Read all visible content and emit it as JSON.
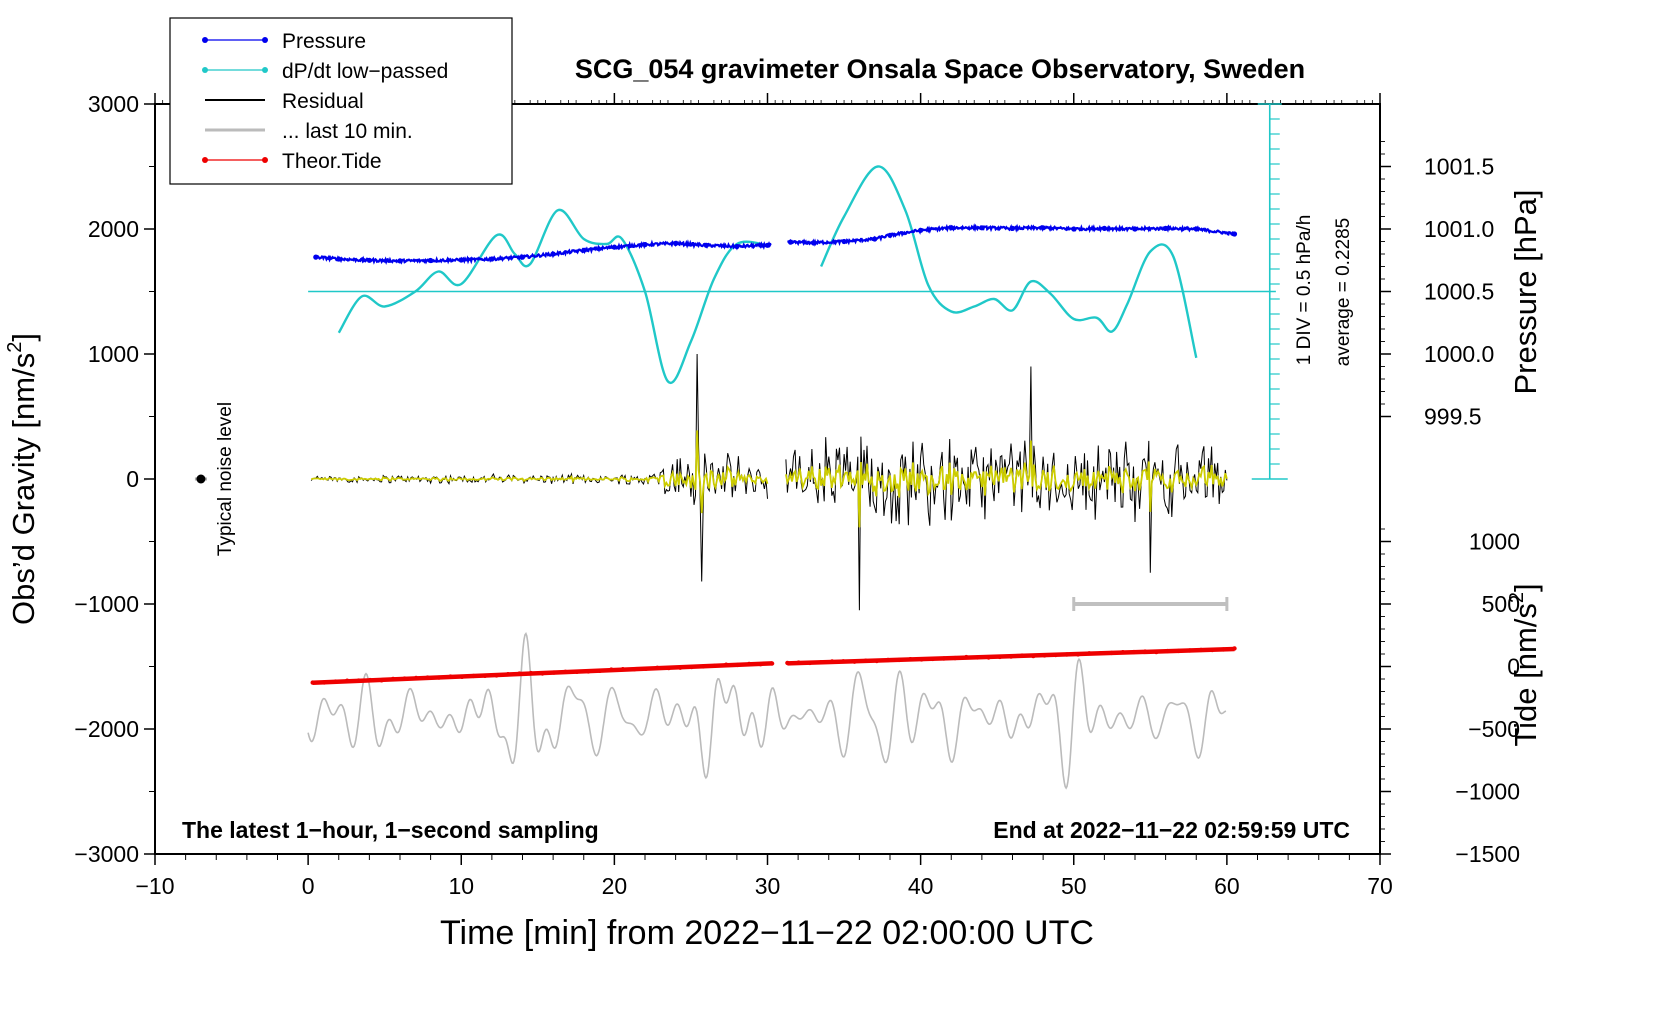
{
  "chart_data": {
    "type": "line",
    "title": "SCG_054 gravimeter Onsala Space Observatory, Sweden",
    "xlabel": "Time [min] from 2022−11−22 02:00:00 UTC",
    "ylabel_left": "Obs’d Gravity [nm/s²]",
    "ylabel_left_main": "Obs’d Gravity [nm/s",
    "ylabel_left_sup": "2",
    "ylabel_left_close": "]",
    "ylabel_pressure": "Pressure [hPa]",
    "ylabel_tide_main": "Tide [nm/s",
    "ylabel_tide_sup": "2",
    "ylabel_tide_close": "]",
    "xlim": [
      -10,
      70
    ],
    "ylim": [
      -3000,
      3000
    ],
    "xticks": [
      -10,
      0,
      10,
      20,
      30,
      40,
      50,
      60,
      70
    ],
    "xtick_labels": [
      "−10",
      "0",
      "10",
      "20",
      "30",
      "40",
      "50",
      "60",
      "70"
    ],
    "yticks": [
      3000,
      2000,
      1000,
      0,
      -1000,
      -2000,
      -3000
    ],
    "ytick_labels": [
      "3000",
      "2000",
      "1000",
      "0",
      "−1000",
      "−2000",
      "−3000"
    ],
    "pressure_axis": {
      "ticks": [
        1001.5,
        1001.0,
        1000.5,
        1000.0,
        999.5
      ],
      "labels": [
        "1001.5",
        "1001.0",
        "1000.5",
        "1000.0",
        "999.5"
      ],
      "gravity_at_1000hPa": 1000,
      "gravity_per_hPa": 1000
    },
    "tide_axis": {
      "ticks": [
        1000,
        500,
        0,
        -500,
        -1000,
        -1500
      ],
      "labels": [
        "1000",
        "500",
        "0",
        "−500",
        "−1000",
        "−1500"
      ],
      "gravity_at_0": -1500,
      "gravity_per_unit": 1
    },
    "legend": {
      "position": "top-left",
      "entries": [
        {
          "label": "Pressure",
          "color": "#0000ee",
          "marker": true
        },
        {
          "label": "dP/dt low−passed",
          "color": "#20c8c8",
          "marker": true
        },
        {
          "label": "Residual",
          "color": "#000000",
          "marker": false
        },
        {
          "label": "... last 10 min.",
          "color": "#bbbbbb",
          "marker": false
        },
        {
          "label": "Theor.Tide",
          "color": "#ee0000",
          "marker": true
        }
      ]
    },
    "colors": {
      "pressure": "#0000ee",
      "dpdt": "#20c8c8",
      "residual": "#000000",
      "residual_filtered": "#cccc00",
      "last10": "#bbbbbb",
      "tide": "#ee0000",
      "noise": "#000000"
    },
    "annotations": {
      "bottom_left": "The latest 1−hour, 1−second sampling",
      "bottom_right": "End at 2022−11−22 02:59:59 UTC",
      "noise_label": "Typical noise level",
      "div_label": "1 DIV = 0.5 hPa/h",
      "average_label": "average = 0.2285"
    },
    "dpdt_scale": {
      "x": 62.8,
      "baseline_gravity": 1500,
      "divisions": 15,
      "gravity_per_div": 100
    },
    "dpdt_baseline": {
      "x": [
        0,
        63.2
      ],
      "y": [
        1500,
        1500
      ]
    },
    "noise_level": {
      "x": -7,
      "y": 0
    },
    "last10_bar": {
      "x": [
        50,
        60
      ],
      "y": -1000
    },
    "pressure": {
      "x": [
        0.5,
        2,
        4,
        6,
        8,
        10,
        12,
        14,
        16,
        18,
        20,
        22,
        24,
        26,
        28,
        30,
        31.5,
        33,
        35,
        37,
        38,
        40,
        42,
        44,
        46,
        48,
        50,
        52,
        54,
        56,
        58,
        60.5
      ],
      "y": [
        1775,
        1760,
        1750,
        1745,
        1748,
        1752,
        1760,
        1775,
        1800,
        1830,
        1855,
        1875,
        1885,
        1870,
        1860,
        1870,
        1895,
        1890,
        1900,
        1920,
        1950,
        1990,
        2010,
        2010,
        2005,
        2010,
        2000,
        2005,
        2000,
        2005,
        2000,
        1960
      ]
    },
    "dpdt_segment1": {
      "x": [
        2,
        3.5,
        5,
        7,
        8.5,
        10,
        12.3,
        13.5,
        14.5,
        16.3,
        18,
        19.5,
        20.5,
        22,
        23.5,
        25,
        26.5,
        28,
        30
      ],
      "y": [
        1170,
        1460,
        1380,
        1500,
        1660,
        1560,
        1950,
        1800,
        1720,
        2150,
        1920,
        1880,
        1920,
        1500,
        780,
        1100,
        1600,
        1880,
        1870
      ]
    },
    "dpdt_segment2": {
      "x": [
        33.5,
        35,
        37.2,
        39,
        40.5,
        42,
        43.5,
        44.8,
        46,
        47.2,
        48.5,
        50,
        51.5,
        52.5,
        53.5,
        55,
        56.5,
        58
      ],
      "y": [
        1700,
        2100,
        2500,
        2150,
        1550,
        1340,
        1380,
        1440,
        1350,
        1580,
        1480,
        1280,
        1290,
        1180,
        1400,
        1820,
        1780,
        970
      ]
    },
    "tide_segment1": {
      "x": [
        0.3,
        30.3
      ],
      "y": [
        -1630,
        -1475
      ]
    },
    "tide_segment2": {
      "x": [
        31.3,
        60.5
      ],
      "y": [
        -1475,
        -1360
      ]
    },
    "residual_model": {
      "segments": [
        [
          0.2,
          30.1
        ],
        [
          31.2,
          60.1
        ]
      ],
      "step_minutes": 0.1,
      "envelope": {
        "x": [
          0,
          10,
          20,
          22.5,
          23.5,
          25,
          26,
          27,
          29,
          30,
          31,
          35,
          40,
          45,
          50,
          55,
          60
        ],
        "y": [
          30,
          45,
          40,
          90,
          200,
          400,
          520,
          250,
          200,
          220,
          320,
          480,
          420,
          380,
          380,
          360,
          300
        ]
      },
      "spikes": [
        {
          "x": 25.4,
          "y": 1000
        },
        {
          "x": 25.7,
          "y": -820
        },
        {
          "x": 36.0,
          "y": -1050
        },
        {
          "x": 47.2,
          "y": 900
        },
        {
          "x": 55.0,
          "y": -750
        }
      ]
    },
    "last10_model": {
      "x_range": [
        0,
        60
      ],
      "center": -1900,
      "amplitude": 290
    }
  }
}
